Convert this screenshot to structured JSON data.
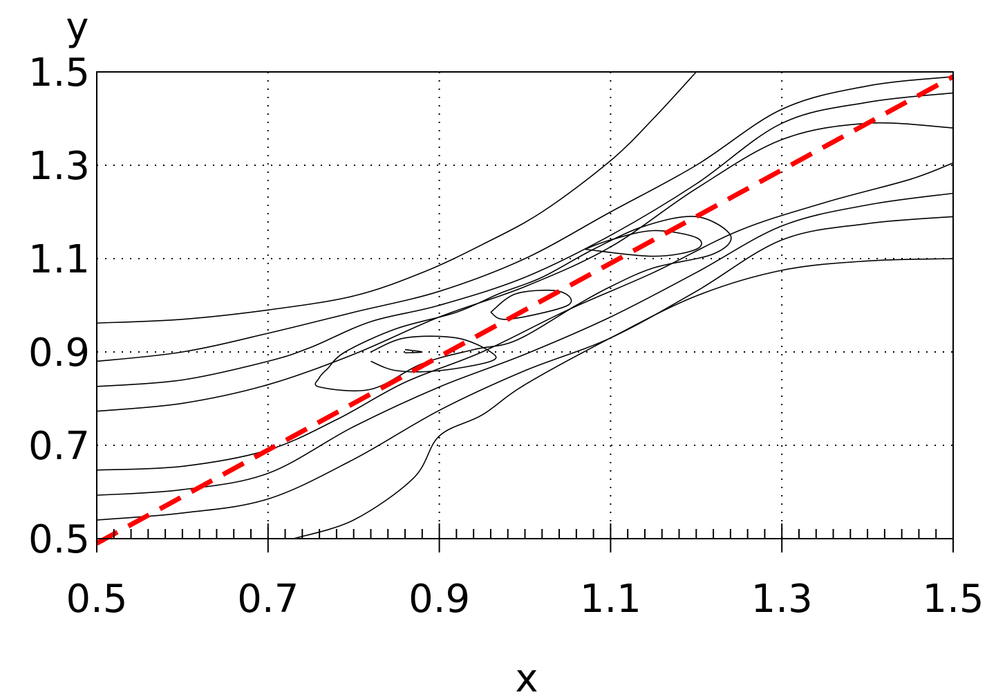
{
  "chart_data": {
    "type": "line",
    "title": "",
    "xlabel": "x",
    "ylabel": "y",
    "xlim": [
      0.5,
      1.5
    ],
    "ylim": [
      0.5,
      1.5
    ],
    "xticks": [
      0.5,
      0.7,
      0.9,
      1.1,
      1.3,
      1.5
    ],
    "yticks": [
      0.5,
      0.7,
      0.9,
      1.1,
      1.3,
      1.5
    ],
    "xtick_labels": [
      "0.5",
      "0.7",
      "0.9",
      "1.1",
      "1.3",
      "1.5"
    ],
    "ytick_labels": [
      "0.5",
      "0.7",
      "0.9",
      "1.1",
      "1.3",
      "1.5"
    ],
    "grid": "dotted",
    "colors": {
      "contour": "#000000",
      "reference_line": "#ff0000"
    },
    "reference_line": {
      "style": "dashed",
      "x": [
        0.5,
        1.5
      ],
      "y": [
        0.49,
        1.49
      ]
    },
    "contours": [
      {
        "x": [
          0.5,
          0.6,
          0.7,
          0.8,
          0.88,
          0.95,
          1.02,
          1.1,
          1.15,
          1.2
        ],
        "y": [
          0.962,
          0.97,
          0.99,
          1.02,
          1.07,
          1.13,
          1.2,
          1.31,
          1.4,
          1.5
        ]
      },
      {
        "x": [
          0.5,
          0.6,
          0.7,
          0.8,
          0.9,
          1.0,
          1.1,
          1.2,
          1.3,
          1.4,
          1.5
        ],
        "y": [
          0.88,
          0.9,
          0.94,
          0.985,
          1.03,
          1.1,
          1.2,
          1.3,
          1.42,
          1.47,
          1.49
        ]
      },
      {
        "x": [
          0.5,
          0.6,
          0.7,
          0.75,
          0.82,
          0.9,
          1.0,
          1.1,
          1.2,
          1.3,
          1.4,
          1.5
        ],
        "y": [
          0.826,
          0.84,
          0.88,
          0.91,
          0.965,
          1.0,
          1.06,
          1.15,
          1.26,
          1.39,
          1.435,
          1.455
        ]
      },
      {
        "x": [
          0.5,
          0.6,
          0.7,
          0.8,
          0.9,
          1.0,
          1.1,
          1.2,
          1.3,
          1.4,
          1.5
        ],
        "y": [
          0.773,
          0.79,
          0.83,
          0.895,
          0.975,
          1.04,
          1.125,
          1.25,
          1.355,
          1.39,
          1.38
        ]
      },
      {
        "x": [
          0.5,
          0.6,
          0.7,
          0.78,
          0.86,
          0.95,
          1.05,
          1.15,
          1.25,
          1.35,
          1.45,
          1.5
        ],
        "y": [
          0.647,
          0.655,
          0.69,
          0.755,
          0.835,
          0.9,
          0.99,
          1.07,
          1.16,
          1.22,
          1.27,
          1.305
        ]
      },
      {
        "x": [
          0.5,
          0.6,
          0.7,
          0.8,
          0.9,
          1.0,
          1.1,
          1.2,
          1.3,
          1.4,
          1.5
        ],
        "y": [
          0.593,
          0.605,
          0.64,
          0.74,
          0.825,
          0.895,
          0.975,
          1.07,
          1.17,
          1.215,
          1.24
        ]
      },
      {
        "x": [
          0.5,
          0.6,
          0.7,
          0.8,
          0.9,
          1.0,
          1.1,
          1.2,
          1.3,
          1.4,
          1.5
        ],
        "y": [
          0.54,
          0.555,
          0.585,
          0.67,
          0.775,
          0.86,
          0.93,
          1.03,
          1.14,
          1.175,
          1.19
        ]
      },
      {
        "x": [
          0.73,
          0.8,
          0.87,
          0.9,
          0.95,
          1.0,
          1.1,
          1.2,
          1.3,
          1.4,
          1.5
        ],
        "y": [
          0.5,
          0.54,
          0.63,
          0.72,
          0.765,
          0.83,
          0.93,
          1.02,
          1.075,
          1.095,
          1.1
        ]
      },
      {
        "x": [
          0.77,
          0.79,
          0.85,
          0.92,
          0.97,
          1.02,
          1.08,
          1.14,
          1.2,
          1.24,
          1.22,
          1.15,
          1.1,
          1.06,
          0.99,
          0.94,
          0.88,
          0.82,
          0.76,
          0.76,
          0.77
        ],
        "y": [
          0.865,
          0.9,
          0.95,
          0.985,
          1.025,
          1.06,
          1.12,
          1.17,
          1.19,
          1.15,
          1.11,
          1.08,
          1.04,
          1.0,
          0.925,
          0.905,
          0.875,
          0.82,
          0.825,
          0.845,
          0.865
        ]
      },
      {
        "x": [
          0.82,
          0.86,
          0.92,
          0.96,
          0.96,
          0.9,
          0.85,
          0.82
        ],
        "y": [
          0.9,
          0.93,
          0.93,
          0.9,
          0.88,
          0.86,
          0.86,
          0.88
        ]
      },
      {
        "x": [
          0.86,
          0.88,
          0.86
        ],
        "y": [
          0.905,
          0.9,
          0.898
        ]
      },
      {
        "x": [
          0.96,
          0.99,
          1.04,
          1.05,
          0.98,
          0.96
        ],
        "y": [
          0.985,
          1.025,
          1.03,
          1.0,
          0.97,
          0.985
        ]
      },
      {
        "x": [
          1.07,
          1.1,
          1.15,
          1.2,
          1.2,
          1.15,
          1.07
        ],
        "y": [
          1.12,
          1.14,
          1.16,
          1.145,
          1.12,
          1.105,
          1.12
        ]
      }
    ]
  }
}
